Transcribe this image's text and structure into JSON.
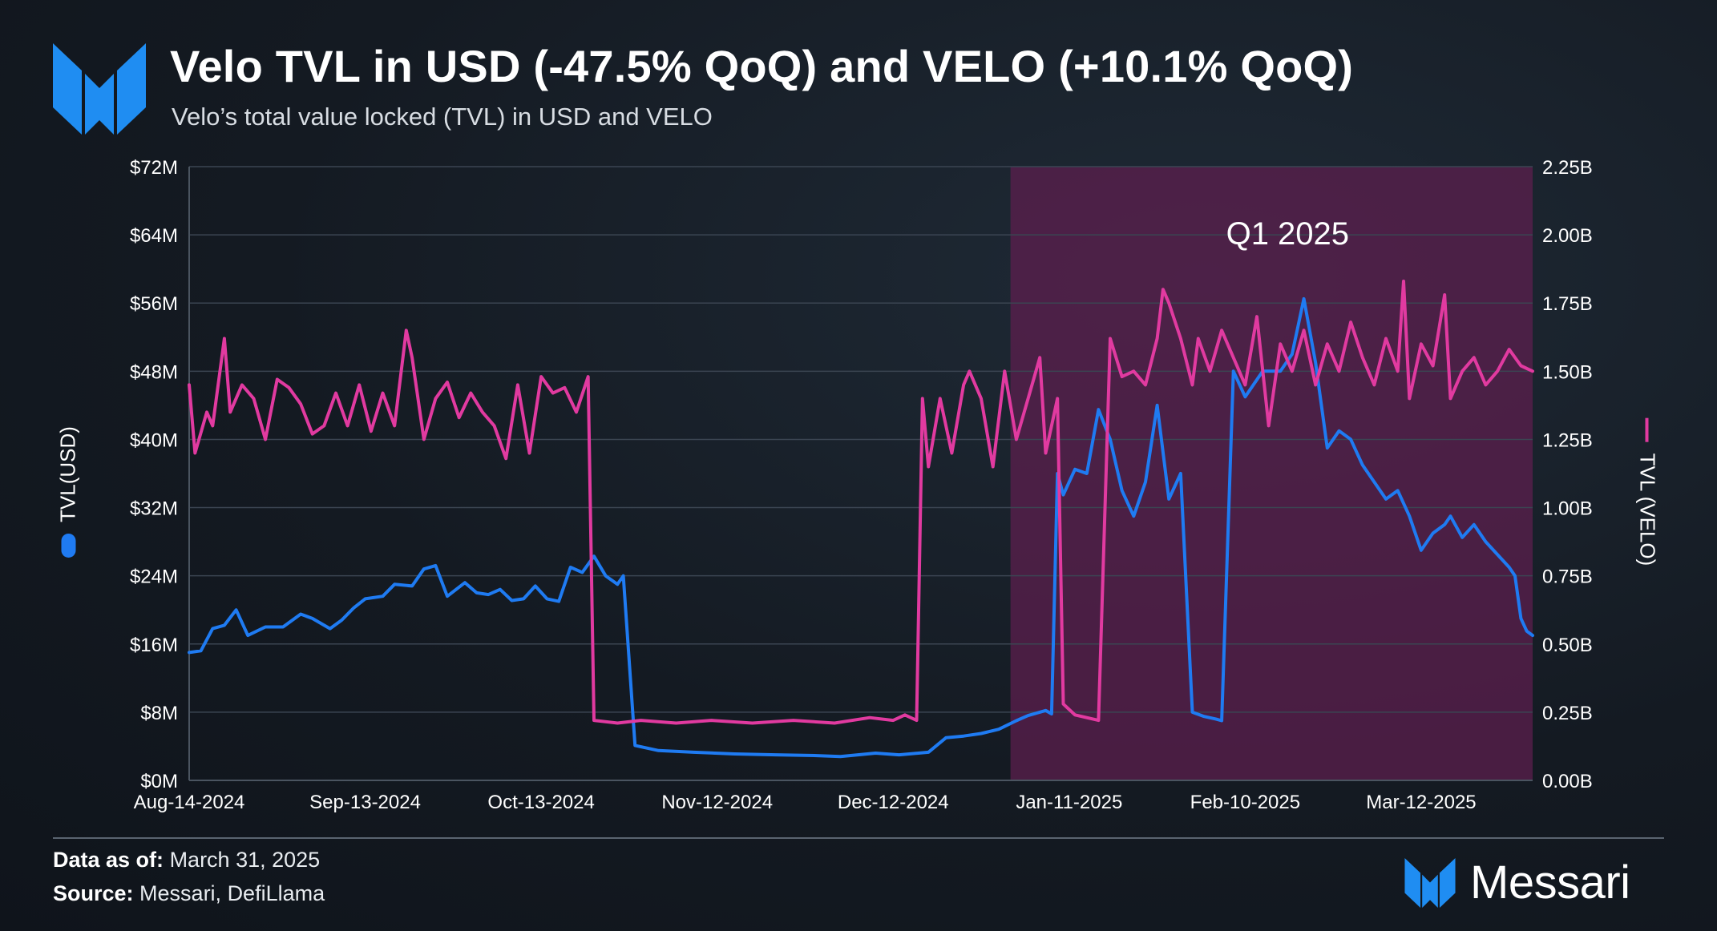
{
  "header": {
    "title": "Velo TVL in USD (-47.5% QoQ) and VELO (+10.1% QoQ)",
    "subtitle": "Velo’s total value locked (TVL) in USD and VELO"
  },
  "footer": {
    "data_as_of_label": "Data as of:",
    "data_as_of_value": "March 31, 2025",
    "source_label": "Source:",
    "source_value": "Messari, DefiLlama",
    "brand": "Messari"
  },
  "colors": {
    "usd_series": "#1f7bf2",
    "velo_series": "#e13aa0",
    "highlight": "#5e1f4f",
    "logo": "#1f8df2"
  },
  "icons": {
    "logo": "messari-logo-icon"
  },
  "chart_data": {
    "type": "line",
    "x_range": [
      "2024-08-14",
      "2025-03-31"
    ],
    "xlabel": "",
    "x_tick_labels": [
      "Aug-14-2024",
      "Sep-13-2024",
      "Oct-13-2024",
      "Nov-12-2024",
      "Dec-12-2024",
      "Jan-11-2025",
      "Feb-10-2025",
      "Mar-12-2025"
    ],
    "y_left": {
      "label": "TVL(USD)",
      "range": [
        0,
        72
      ],
      "tick_labels": [
        "$0M",
        "$8M",
        "$16M",
        "$24M",
        "$32M",
        "$40M",
        "$48M",
        "$56M",
        "$64M",
        "$72M"
      ]
    },
    "y_right": {
      "label": "TVL (VELO)",
      "range": [
        0,
        2.25
      ],
      "tick_labels": [
        "0.00B",
        "0.25B",
        "0.50B",
        "0.75B",
        "1.00B",
        "1.25B",
        "1.50B",
        "1.75B",
        "2.00B",
        "2.25B"
      ]
    },
    "annotation": {
      "text": "Q1 2025",
      "start": "2025-01-01",
      "end": "2025-03-31"
    },
    "grid": true,
    "legend": "axis-titles",
    "series": [
      {
        "name": "TVL(USD)",
        "axis": "left",
        "unit": "USD millions",
        "points": [
          [
            "2024-08-14",
            15.0
          ],
          [
            "2024-08-16",
            15.2
          ],
          [
            "2024-08-18",
            17.8
          ],
          [
            "2024-08-20",
            18.2
          ],
          [
            "2024-08-22",
            20.0
          ],
          [
            "2024-08-24",
            17.0
          ],
          [
            "2024-08-27",
            18.0
          ],
          [
            "2024-08-30",
            18.0
          ],
          [
            "2024-09-02",
            19.5
          ],
          [
            "2024-09-04",
            19.0
          ],
          [
            "2024-09-07",
            17.8
          ],
          [
            "2024-09-09",
            18.8
          ],
          [
            "2024-09-11",
            20.2
          ],
          [
            "2024-09-13",
            21.3
          ],
          [
            "2024-09-16",
            21.6
          ],
          [
            "2024-09-18",
            23.0
          ],
          [
            "2024-09-21",
            22.8
          ],
          [
            "2024-09-23",
            24.8
          ],
          [
            "2024-09-25",
            25.2
          ],
          [
            "2024-09-27",
            21.6
          ],
          [
            "2024-09-30",
            23.2
          ],
          [
            "2024-10-02",
            22.0
          ],
          [
            "2024-10-04",
            21.8
          ],
          [
            "2024-10-06",
            22.4
          ],
          [
            "2024-10-08",
            21.1
          ],
          [
            "2024-10-10",
            21.3
          ],
          [
            "2024-10-12",
            22.8
          ],
          [
            "2024-10-14",
            21.3
          ],
          [
            "2024-10-16",
            21.0
          ],
          [
            "2024-10-18",
            25.0
          ],
          [
            "2024-10-20",
            24.4
          ],
          [
            "2024-10-22",
            26.3
          ],
          [
            "2024-10-24",
            24.0
          ],
          [
            "2024-10-26",
            23.0
          ],
          [
            "2024-10-27",
            24.0
          ],
          [
            "2024-10-29",
            4.1
          ],
          [
            "2024-11-02",
            3.5
          ],
          [
            "2024-11-08",
            3.3
          ],
          [
            "2024-11-15",
            3.1
          ],
          [
            "2024-11-22",
            3.0
          ],
          [
            "2024-11-29",
            2.9
          ],
          [
            "2024-12-03",
            2.8
          ],
          [
            "2024-12-09",
            3.2
          ],
          [
            "2024-12-13",
            3.0
          ],
          [
            "2024-12-18",
            3.3
          ],
          [
            "2024-12-21",
            5.0
          ],
          [
            "2024-12-24",
            5.2
          ],
          [
            "2024-12-27",
            5.5
          ],
          [
            "2024-12-30",
            6.0
          ],
          [
            "2025-01-02",
            7.0
          ],
          [
            "2025-01-04",
            7.6
          ],
          [
            "2025-01-07",
            8.2
          ],
          [
            "2025-01-08",
            7.8
          ],
          [
            "2025-01-09",
            36.0
          ],
          [
            "2025-01-10",
            33.5
          ],
          [
            "2025-01-11",
            35.0
          ],
          [
            "2025-01-12",
            36.5
          ],
          [
            "2025-01-14",
            36.0
          ],
          [
            "2025-01-16",
            43.5
          ],
          [
            "2025-01-18",
            40.0
          ],
          [
            "2025-01-20",
            34.0
          ],
          [
            "2025-01-22",
            31.0
          ],
          [
            "2025-01-24",
            35.0
          ],
          [
            "2025-01-26",
            44.0
          ],
          [
            "2025-01-28",
            33.0
          ],
          [
            "2025-01-30",
            36.0
          ],
          [
            "2025-02-01",
            8.0
          ],
          [
            "2025-02-03",
            7.5
          ],
          [
            "2025-02-05",
            7.2
          ],
          [
            "2025-02-06",
            7.0
          ],
          [
            "2025-02-08",
            48.0
          ],
          [
            "2025-02-10",
            45.0
          ],
          [
            "2025-02-13",
            48.0
          ],
          [
            "2025-02-16",
            48.0
          ],
          [
            "2025-02-18",
            50.0
          ],
          [
            "2025-02-20",
            56.5
          ],
          [
            "2025-02-22",
            49.0
          ],
          [
            "2025-02-24",
            39.0
          ],
          [
            "2025-02-26",
            41.0
          ],
          [
            "2025-02-28",
            40.0
          ],
          [
            "2025-03-02",
            37.0
          ],
          [
            "2025-03-04",
            35.0
          ],
          [
            "2025-03-06",
            33.0
          ],
          [
            "2025-03-08",
            34.0
          ],
          [
            "2025-03-10",
            31.0
          ],
          [
            "2025-03-12",
            27.0
          ],
          [
            "2025-03-14",
            29.0
          ],
          [
            "2025-03-16",
            30.0
          ],
          [
            "2025-03-17",
            31.0
          ],
          [
            "2025-03-19",
            28.5
          ],
          [
            "2025-03-21",
            30.0
          ],
          [
            "2025-03-23",
            28.0
          ],
          [
            "2025-03-25",
            26.5
          ],
          [
            "2025-03-27",
            25.0
          ],
          [
            "2025-03-28",
            24.0
          ],
          [
            "2025-03-29",
            19.0
          ],
          [
            "2025-03-30",
            17.5
          ],
          [
            "2025-03-31",
            17.0
          ]
        ]
      },
      {
        "name": "TVL (VELO)",
        "axis": "right",
        "unit": "VELO billions",
        "points": [
          [
            "2024-08-14",
            1.45
          ],
          [
            "2024-08-15",
            1.2
          ],
          [
            "2024-08-17",
            1.35
          ],
          [
            "2024-08-18",
            1.3
          ],
          [
            "2024-08-20",
            1.62
          ],
          [
            "2024-08-21",
            1.35
          ],
          [
            "2024-08-23",
            1.45
          ],
          [
            "2024-08-25",
            1.4
          ],
          [
            "2024-08-27",
            1.25
          ],
          [
            "2024-08-29",
            1.47
          ],
          [
            "2024-08-31",
            1.44
          ],
          [
            "2024-09-02",
            1.38
          ],
          [
            "2024-09-04",
            1.27
          ],
          [
            "2024-09-06",
            1.3
          ],
          [
            "2024-09-08",
            1.42
          ],
          [
            "2024-09-10",
            1.3
          ],
          [
            "2024-09-12",
            1.45
          ],
          [
            "2024-09-14",
            1.28
          ],
          [
            "2024-09-16",
            1.42
          ],
          [
            "2024-09-18",
            1.3
          ],
          [
            "2024-09-20",
            1.65
          ],
          [
            "2024-09-21",
            1.55
          ],
          [
            "2024-09-23",
            1.25
          ],
          [
            "2024-09-25",
            1.4
          ],
          [
            "2024-09-27",
            1.46
          ],
          [
            "2024-09-29",
            1.33
          ],
          [
            "2024-10-01",
            1.42
          ],
          [
            "2024-10-03",
            1.35
          ],
          [
            "2024-10-05",
            1.3
          ],
          [
            "2024-10-07",
            1.18
          ],
          [
            "2024-10-09",
            1.45
          ],
          [
            "2024-10-11",
            1.2
          ],
          [
            "2024-10-13",
            1.48
          ],
          [
            "2024-10-15",
            1.42
          ],
          [
            "2024-10-17",
            1.44
          ],
          [
            "2024-10-19",
            1.35
          ],
          [
            "2024-10-21",
            1.48
          ],
          [
            "2024-10-22",
            0.22
          ],
          [
            "2024-10-26",
            0.21
          ],
          [
            "2024-10-30",
            0.22
          ],
          [
            "2024-11-05",
            0.21
          ],
          [
            "2024-11-11",
            0.22
          ],
          [
            "2024-11-18",
            0.21
          ],
          [
            "2024-11-25",
            0.22
          ],
          [
            "2024-12-02",
            0.21
          ],
          [
            "2024-12-08",
            0.23
          ],
          [
            "2024-12-12",
            0.22
          ],
          [
            "2024-12-14",
            0.24
          ],
          [
            "2024-12-16",
            0.22
          ],
          [
            "2024-12-17",
            1.4
          ],
          [
            "2024-12-18",
            1.15
          ],
          [
            "2024-12-20",
            1.4
          ],
          [
            "2024-12-22",
            1.2
          ],
          [
            "2024-12-24",
            1.45
          ],
          [
            "2024-12-25",
            1.5
          ],
          [
            "2024-12-27",
            1.4
          ],
          [
            "2024-12-29",
            1.15
          ],
          [
            "2024-12-31",
            1.5
          ],
          [
            "2025-01-02",
            1.25
          ],
          [
            "2025-01-04",
            1.4
          ],
          [
            "2025-01-06",
            1.55
          ],
          [
            "2025-01-07",
            1.2
          ],
          [
            "2025-01-09",
            1.4
          ],
          [
            "2025-01-10",
            0.28
          ],
          [
            "2025-01-12",
            0.24
          ],
          [
            "2025-01-14",
            0.23
          ],
          [
            "2025-01-16",
            0.22
          ],
          [
            "2025-01-18",
            1.62
          ],
          [
            "2025-01-20",
            1.48
          ],
          [
            "2025-01-22",
            1.5
          ],
          [
            "2025-01-24",
            1.45
          ],
          [
            "2025-01-26",
            1.62
          ],
          [
            "2025-01-27",
            1.8
          ],
          [
            "2025-01-28",
            1.75
          ],
          [
            "2025-01-30",
            1.62
          ],
          [
            "2025-02-01",
            1.45
          ],
          [
            "2025-02-02",
            1.62
          ],
          [
            "2025-02-04",
            1.5
          ],
          [
            "2025-02-06",
            1.65
          ],
          [
            "2025-02-08",
            1.55
          ],
          [
            "2025-02-10",
            1.45
          ],
          [
            "2025-02-12",
            1.7
          ],
          [
            "2025-02-14",
            1.3
          ],
          [
            "2025-02-16",
            1.6
          ],
          [
            "2025-02-18",
            1.5
          ],
          [
            "2025-02-20",
            1.65
          ],
          [
            "2025-02-22",
            1.45
          ],
          [
            "2025-02-24",
            1.6
          ],
          [
            "2025-02-26",
            1.5
          ],
          [
            "2025-02-28",
            1.68
          ],
          [
            "2025-03-02",
            1.55
          ],
          [
            "2025-03-04",
            1.45
          ],
          [
            "2025-03-06",
            1.62
          ],
          [
            "2025-03-08",
            1.5
          ],
          [
            "2025-03-09",
            1.83
          ],
          [
            "2025-03-10",
            1.4
          ],
          [
            "2025-03-12",
            1.6
          ],
          [
            "2025-03-14",
            1.52
          ],
          [
            "2025-03-16",
            1.78
          ],
          [
            "2025-03-17",
            1.4
          ],
          [
            "2025-03-19",
            1.5
          ],
          [
            "2025-03-21",
            1.55
          ],
          [
            "2025-03-23",
            1.45
          ],
          [
            "2025-03-25",
            1.5
          ],
          [
            "2025-03-27",
            1.58
          ],
          [
            "2025-03-29",
            1.52
          ],
          [
            "2025-03-31",
            1.5
          ]
        ]
      }
    ]
  }
}
